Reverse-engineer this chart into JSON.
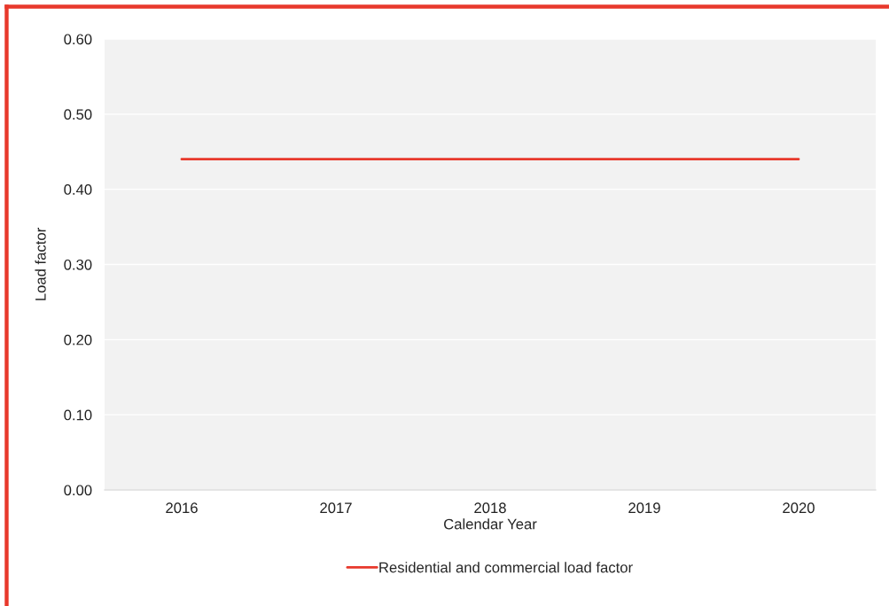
{
  "chart_data": {
    "type": "line",
    "xlabel": "Calendar Year",
    "ylabel": "Load factor",
    "categories": [
      "2016",
      "2017",
      "2018",
      "2019",
      "2020"
    ],
    "series": [
      {
        "name": "Residential and commercial load factor",
        "color": "#e8392c",
        "values": [
          0.44,
          0.44,
          0.44,
          0.44,
          0.44
        ]
      }
    ],
    "ylim": [
      0,
      0.6
    ],
    "yticks": [
      {
        "value": 0,
        "label": "0.00"
      },
      {
        "value": 0.1,
        "label": "0.10"
      },
      {
        "value": 0.2,
        "label": "0.20"
      },
      {
        "value": 0.3,
        "label": "0.30"
      },
      {
        "value": 0.4,
        "label": "0.40"
      },
      {
        "value": 0.5,
        "label": "0.50"
      },
      {
        "value": 0.6,
        "label": "0.60"
      }
    ],
    "grid": "y",
    "legend": "bottom",
    "marker": "none",
    "line_style": "solid"
  }
}
